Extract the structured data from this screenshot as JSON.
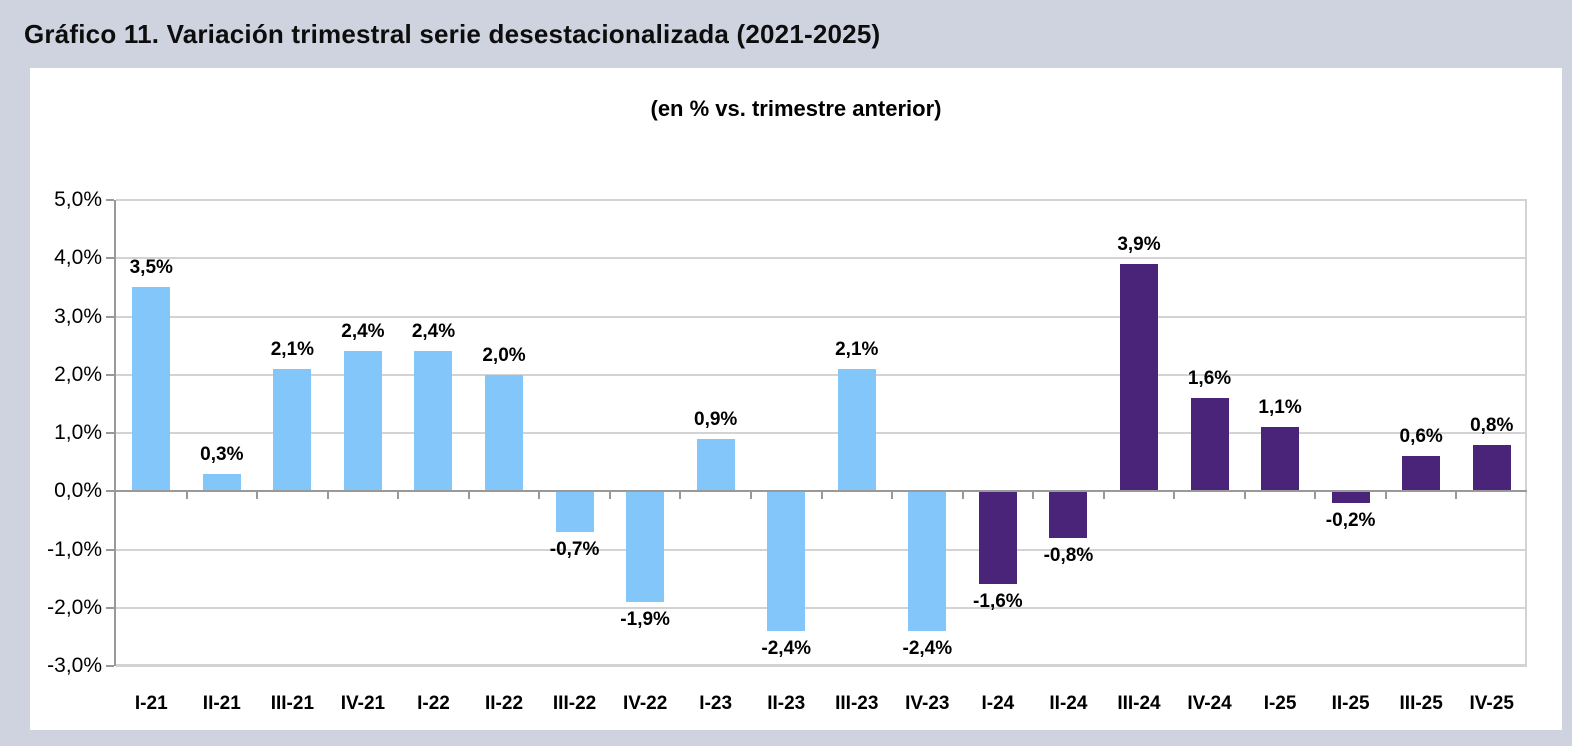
{
  "page": {
    "title": "Gráfico 11. Variación trimestral serie desestacionalizada (2021-2025)"
  },
  "chart_data": {
    "type": "bar",
    "title": "Gráfico 11. Variación trimestral serie desestacionalizada (2021-2025)",
    "subtitle": "(en % vs. trimestre anterior)",
    "categories": [
      "I-21",
      "II-21",
      "III-21",
      "IV-21",
      "I-22",
      "II-22",
      "III-22",
      "IV-22",
      "I-23",
      "II-23",
      "III-23",
      "IV-23",
      "I-24",
      "II-24",
      "III-24",
      "IV-24",
      "I-25",
      "II-25",
      "III-25",
      "IV-25"
    ],
    "values": [
      3.5,
      0.3,
      2.1,
      2.4,
      2.4,
      2.0,
      -0.7,
      -1.9,
      0.9,
      -2.4,
      2.1,
      -2.4,
      -1.6,
      -0.8,
      3.9,
      1.6,
      1.1,
      -0.2,
      0.6,
      0.8
    ],
    "value_labels": [
      "3,5%",
      "0,3%",
      "2,1%",
      "2,4%",
      "2,4%",
      "2,0%",
      "-0,7%",
      "-1,9%",
      "0,9%",
      "-2,4%",
      "2,1%",
      "-2,4%",
      "-1,6%",
      "-0,8%",
      "3,9%",
      "1,6%",
      "1,1%",
      "-0,2%",
      "0,6%",
      "0,8%"
    ],
    "split_index": 12,
    "period_colors": [
      {
        "period": "2021-2023",
        "color": "#82c6fa"
      },
      {
        "period": "2024-2025",
        "color": "#492478"
      }
    ],
    "ylim": [
      -3,
      5
    ],
    "y_ticks": [
      {
        "value": 5,
        "label": "5,0%"
      },
      {
        "value": 4,
        "label": "4,0%"
      },
      {
        "value": 3,
        "label": "3,0%"
      },
      {
        "value": 2,
        "label": "2,0%"
      },
      {
        "value": 1,
        "label": "1,0%"
      },
      {
        "value": 0,
        "label": "0,0%"
      },
      {
        "value": -1,
        "label": "-1,0%"
      },
      {
        "value": -2,
        "label": "-2,0%"
      },
      {
        "value": -3,
        "label": "-3,0%"
      }
    ],
    "grid": true,
    "legend": "none",
    "xlabel": "",
    "ylabel": ""
  },
  "style": {
    "background": "#cfd3df",
    "panel_background": "#ffffff",
    "gridline_color": "#d3d3d3",
    "axis_color": "#999999",
    "text_color": "#000000"
  }
}
